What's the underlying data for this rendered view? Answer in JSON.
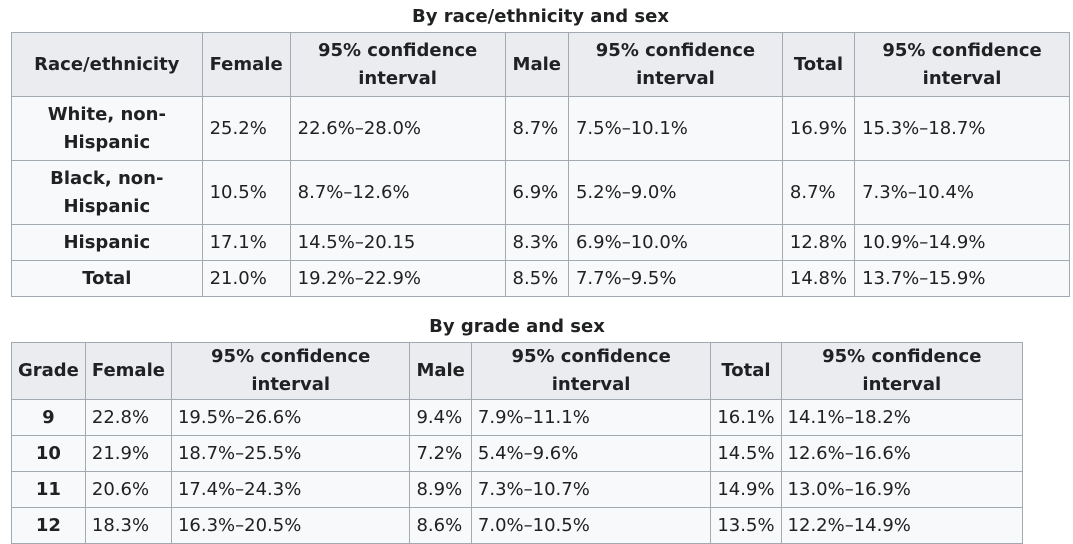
{
  "race_table": {
    "caption": "By race/ethnicity and sex",
    "headers": [
      "Race/ethnicity",
      "Female",
      "95% confidence interval",
      "Male",
      "95% confidence interval",
      "Total",
      "95% confidence interval"
    ],
    "rows": [
      {
        "group": "White, non-Hispanic",
        "female": "25.2%",
        "female_ci": "22.6%–28.0%",
        "male": "8.7%",
        "male_ci": "7.5%–10.1%",
        "total": "16.9%",
        "total_ci": "15.3%–18.7%"
      },
      {
        "group": "Black, non-Hispanic",
        "female": "10.5%",
        "female_ci": "8.7%–12.6%",
        "male": "6.9%",
        "male_ci": "5.2%–9.0%",
        "total": "8.7%",
        "total_ci": "7.3%–10.4%"
      },
      {
        "group": "Hispanic",
        "female": "17.1%",
        "female_ci": "14.5%–20.15",
        "male": "8.3%",
        "male_ci": "6.9%–10.0%",
        "total": "12.8%",
        "total_ci": "10.9%–14.9%"
      },
      {
        "group": "Total",
        "female": "21.0%",
        "female_ci": "19.2%–22.9%",
        "male": "8.5%",
        "male_ci": "7.7%–9.5%",
        "total": "14.8%",
        "total_ci": "13.7%–15.9%"
      }
    ]
  },
  "grade_table": {
    "caption": "By grade and sex",
    "headers": [
      "Grade",
      "Female",
      "95% confidence interval",
      "Male",
      "95% confidence interval",
      "Total",
      "95% confidence interval"
    ],
    "rows": [
      {
        "grade": "9",
        "female": "22.8%",
        "female_ci": "19.5%–26.6%",
        "male": "9.4%",
        "male_ci": "7.9%–11.1%",
        "total": "16.1%",
        "total_ci": "14.1%–18.2%"
      },
      {
        "grade": "10",
        "female": "21.9%",
        "female_ci": "18.7%–25.5%",
        "male": "7.2%",
        "male_ci": "5.4%–9.6%",
        "total": "14.5%",
        "total_ci": "12.6%–16.6%"
      },
      {
        "grade": "11",
        "female": "20.6%",
        "female_ci": "17.4%–24.3%",
        "male": "8.9%",
        "male_ci": "7.3%–10.7%",
        "total": "14.9%",
        "total_ci": "13.0%–16.9%"
      },
      {
        "grade": "12",
        "female": "18.3%",
        "female_ci": "16.3%–20.5%",
        "male": "8.6%",
        "male_ci": "7.0%–10.5%",
        "total": "13.5%",
        "total_ci": "12.2%–14.9%"
      }
    ]
  }
}
